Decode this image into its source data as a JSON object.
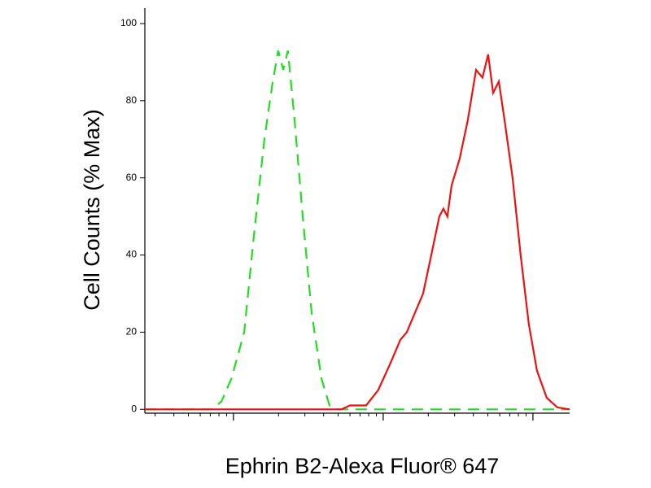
{
  "chart_data": {
    "type": "line",
    "xlabel": "Ephrin B2-Alexa Fluor® 647",
    "ylabel": "Cell Counts (% Max)",
    "xscale": "log",
    "xlim": [
      25.6,
      17580
    ],
    "xticks": [
      100,
      1000,
      10000
    ],
    "ylim": [
      -1,
      104
    ],
    "yticks": [
      0,
      20,
      40,
      60,
      80,
      100
    ],
    "series": [
      {
        "color": "#22dd22",
        "dash": true,
        "x": [
          25.6,
          71,
          83,
          97,
          118,
          137,
          161,
          183,
          199,
          215,
          231,
          256,
          290,
          333,
          387,
          438,
          497,
          17580
        ],
        "values": [
          0,
          0,
          2,
          8,
          20,
          45,
          70,
          85,
          93,
          88,
          93,
          75,
          50,
          25,
          8,
          1,
          0,
          0
        ]
      },
      {
        "color": "#ee1111",
        "dash": false,
        "x": [
          25.6,
          194,
          528,
          599,
          769,
          927,
          1119,
          1300,
          1437,
          1630,
          1846,
          2094,
          2371,
          2523,
          2685,
          2862,
          3243,
          3673,
          4169,
          4603,
          5023,
          5420,
          5916,
          6457,
          7311,
          8279,
          9397,
          10640,
          12360,
          14550,
          17580
        ],
        "values": [
          0,
          0,
          0,
          1,
          1,
          5,
          12,
          18,
          20,
          25,
          30,
          40,
          50,
          52,
          50,
          58,
          65,
          75,
          88,
          86,
          92,
          82,
          85,
          75,
          60,
          40,
          22,
          10,
          3,
          0.5,
          0
        ]
      }
    ]
  }
}
